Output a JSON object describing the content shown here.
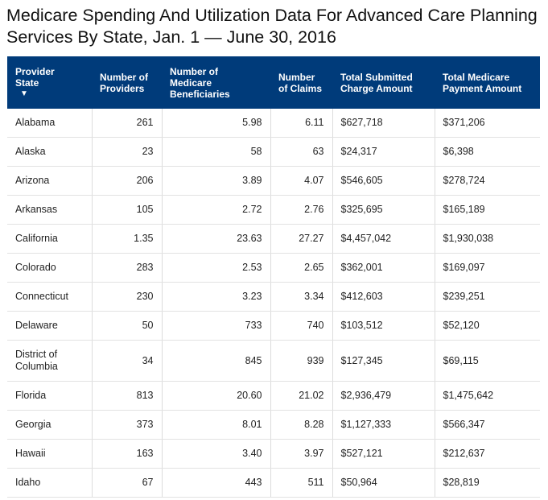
{
  "title": "Medicare Spending And Utilization Data For Advanced Care Planning Services By State, Jan. 1 — June 30, 2016",
  "columns": [
    "Provider State",
    "Number of Providers",
    "Number of Medicare Beneficiaries",
    "Number of Claims",
    "Total Submitted Charge Amount",
    "Total Medicare Payment Amount"
  ],
  "sort_indicator": "▼",
  "rows": [
    [
      "Alabama",
      "261",
      "5.98",
      "6.11",
      "$627,718",
      "$371,206"
    ],
    [
      "Alaska",
      "23",
      "58",
      "63",
      "$24,317",
      "$6,398"
    ],
    [
      "Arizona",
      "206",
      "3.89",
      "4.07",
      "$546,605",
      "$278,724"
    ],
    [
      "Arkansas",
      "105",
      "2.72",
      "2.76",
      "$325,695",
      "$165,189"
    ],
    [
      "California",
      "1.35",
      "23.63",
      "27.27",
      "$4,457,042",
      "$1,930,038"
    ],
    [
      "Colorado",
      "283",
      "2.53",
      "2.65",
      "$362,001",
      "$169,097"
    ],
    [
      "Connecticut",
      "230",
      "3.23",
      "3.34",
      "$412,603",
      "$239,251"
    ],
    [
      "Delaware",
      "50",
      "733",
      "740",
      "$103,512",
      "$52,120"
    ],
    [
      "District of Columbia",
      "34",
      "845",
      "939",
      "$127,345",
      "$69,115"
    ],
    [
      "Florida",
      "813",
      "20.60",
      "21.02",
      "$2,936,479",
      "$1,475,642"
    ],
    [
      "Georgia",
      "373",
      "8.01",
      "8.28",
      "$1,127,333",
      "$566,347"
    ],
    [
      "Hawaii",
      "163",
      "3.40",
      "3.97",
      "$527,121",
      "$212,637"
    ],
    [
      "Idaho",
      "67",
      "443",
      "511",
      "$50,964",
      "$28,819"
    ]
  ],
  "colors": {
    "header_bg": "#003b7a",
    "header_text": "#ffffff"
  }
}
